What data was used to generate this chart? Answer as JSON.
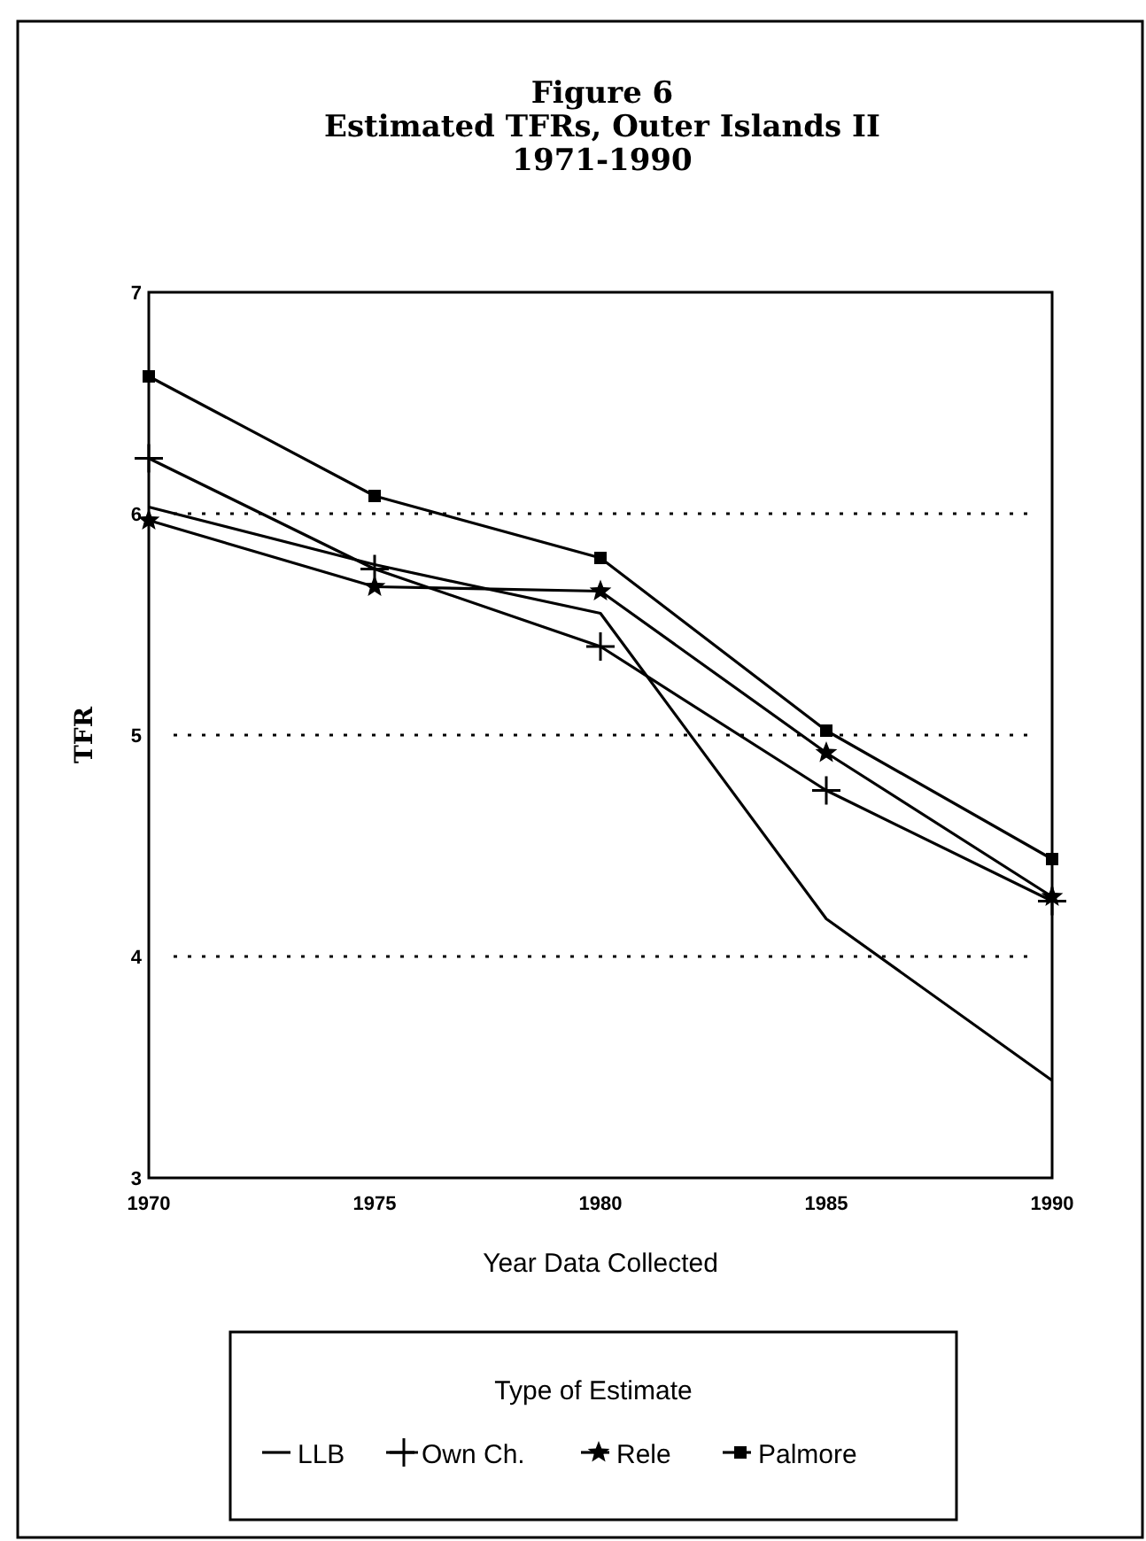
{
  "chart_data": {
    "type": "line",
    "title": "Figure 6\nEstimated TFRs, Outer Islands II\n1971-1990",
    "xlabel": "Year Data Collected",
    "ylabel": "TFR",
    "legend_title": "Type of Estimate",
    "x": [
      1970,
      1975,
      1980,
      1985,
      1990
    ],
    "xlim": [
      1970,
      1990
    ],
    "xticks": [
      1970,
      1975,
      1980,
      1985,
      1990
    ],
    "ylim": [
      3,
      7
    ],
    "yticks": [
      3,
      4,
      5,
      6,
      7
    ],
    "grid": "y",
    "legend": "bottom",
    "line_style": "solid",
    "series": [
      {
        "name": "LLB",
        "color": "#000000",
        "marker": "none",
        "values": [
          6.03,
          5.77,
          5.55,
          4.17,
          3.44
        ]
      },
      {
        "name": "Own Ch.",
        "color": "#000000",
        "marker": "cross",
        "values": [
          6.25,
          5.75,
          5.4,
          4.75,
          4.25
        ]
      },
      {
        "name": "Rele",
        "color": "#000000",
        "marker": "star",
        "values": [
          5.97,
          5.67,
          5.65,
          4.92,
          4.27
        ]
      },
      {
        "name": "Palmore",
        "color": "#000000",
        "marker": "square",
        "values": [
          6.62,
          6.08,
          5.8,
          5.02,
          4.44
        ]
      }
    ]
  }
}
